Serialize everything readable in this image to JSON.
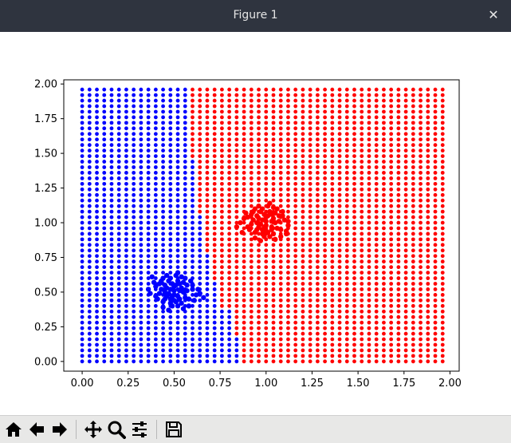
{
  "window": {
    "title": "Figure 1",
    "close_glyph": "✕"
  },
  "toolbar": {
    "buttons": [
      {
        "icon": "home-icon"
      },
      {
        "icon": "back-arrow-icon"
      },
      {
        "icon": "forward-arrow-icon"
      },
      {
        "icon": "pan-icon"
      },
      {
        "icon": "zoom-icon"
      },
      {
        "icon": "configure-subplots-icon"
      },
      {
        "icon": "save-icon"
      }
    ]
  },
  "colors": {
    "class0": "#0000ff",
    "class1": "#ff0000",
    "axes": "#000000"
  },
  "chart_data": {
    "type": "scatter",
    "title": "",
    "xlabel": "",
    "ylabel": "",
    "xlim": [
      -0.1,
      2.05
    ],
    "ylim": [
      -0.07,
      2.03
    ],
    "xticks": [
      "0.00",
      "0.25",
      "0.50",
      "0.75",
      "1.00",
      "1.25",
      "1.50",
      "1.75",
      "2.00"
    ],
    "yticks": [
      "0.00",
      "0.25",
      "0.50",
      "0.75",
      "1.00",
      "1.25",
      "1.50",
      "1.75",
      "2.00"
    ],
    "grid": false,
    "grid_points": {
      "x_range": [
        0.0,
        1.96
      ],
      "y_range": [
        0.0,
        1.96
      ],
      "step": 0.04,
      "boundary_note": "points classified blue (left) / red (right) by decision boundary",
      "boundary": [
        {
          "y": 2.0,
          "x": 0.58
        },
        {
          "y": 1.45,
          "x": 0.58
        },
        {
          "y": 1.44,
          "x": 0.62
        },
        {
          "y": 1.05,
          "x": 0.62
        },
        {
          "y": 1.04,
          "x": 0.66
        },
        {
          "y": 0.8,
          "x": 0.66
        },
        {
          "y": 0.79,
          "x": 0.7
        },
        {
          "y": 0.6,
          "x": 0.7
        },
        {
          "y": 0.59,
          "x": 0.74
        },
        {
          "y": 0.4,
          "x": 0.74
        },
        {
          "y": 0.39,
          "x": 0.82
        },
        {
          "y": 0.17,
          "x": 0.82
        },
        {
          "y": 0.16,
          "x": 0.86
        },
        {
          "y": 0.0,
          "x": 0.86
        }
      ]
    },
    "series": [
      {
        "color": "#0000ff",
        "center": [
          0.5,
          0.5
        ],
        "points": [
          [
            0.48,
            0.52
          ],
          [
            0.52,
            0.47
          ],
          [
            0.45,
            0.55
          ],
          [
            0.55,
            0.5
          ],
          [
            0.5,
            0.44
          ],
          [
            0.47,
            0.58
          ],
          [
            0.53,
            0.56
          ],
          [
            0.42,
            0.49
          ],
          [
            0.58,
            0.45
          ],
          [
            0.49,
            0.4
          ],
          [
            0.44,
            0.43
          ],
          [
            0.56,
            0.6
          ],
          [
            0.51,
            0.62
          ],
          [
            0.4,
            0.54
          ],
          [
            0.6,
            0.52
          ],
          [
            0.46,
            0.47
          ],
          [
            0.54,
            0.42
          ],
          [
            0.5,
            0.54
          ],
          [
            0.43,
            0.58
          ],
          [
            0.57,
            0.55
          ],
          [
            0.48,
            0.45
          ],
          [
            0.52,
            0.58
          ],
          [
            0.38,
            0.61
          ],
          [
            0.62,
            0.48
          ],
          [
            0.47,
            0.37
          ],
          [
            0.55,
            0.38
          ],
          [
            0.45,
            0.5
          ],
          [
            0.53,
            0.51
          ],
          [
            0.41,
            0.45
          ],
          [
            0.59,
            0.58
          ],
          [
            0.5,
            0.48
          ],
          [
            0.49,
            0.56
          ],
          [
            0.64,
            0.49
          ],
          [
            0.36,
            0.52
          ],
          [
            0.52,
            0.64
          ],
          [
            0.46,
            0.62
          ],
          [
            0.58,
            0.4
          ],
          [
            0.44,
            0.39
          ],
          [
            0.61,
            0.44
          ],
          [
            0.39,
            0.57
          ],
          [
            0.51,
            0.43
          ],
          [
            0.48,
            0.6
          ],
          [
            0.56,
            0.46
          ],
          [
            0.43,
            0.52
          ],
          [
            0.54,
            0.53
          ],
          [
            0.47,
            0.49
          ],
          [
            0.53,
            0.45
          ],
          [
            0.5,
            0.51
          ],
          [
            0.66,
            0.46
          ],
          [
            0.45,
            0.45
          ],
          [
            0.57,
            0.51
          ],
          [
            0.42,
            0.56
          ],
          [
            0.55,
            0.57
          ],
          [
            0.49,
            0.47
          ],
          [
            0.51,
            0.55
          ],
          [
            0.46,
            0.53
          ],
          [
            0.6,
            0.55
          ],
          [
            0.4,
            0.47
          ],
          [
            0.52,
            0.4
          ],
          [
            0.48,
            0.42
          ],
          [
            0.63,
            0.52
          ],
          [
            0.37,
            0.49
          ],
          [
            0.54,
            0.61
          ],
          [
            0.44,
            0.6
          ]
        ]
      },
      {
        "color": "#ff0000",
        "center": [
          1.0,
          1.0
        ],
        "points": [
          [
            0.98,
            1.02
          ],
          [
            1.03,
            0.97
          ],
          [
            0.95,
            1.05
          ],
          [
            1.05,
            1.0
          ],
          [
            1.0,
            0.94
          ],
          [
            0.97,
            1.08
          ],
          [
            1.03,
            1.06
          ],
          [
            0.92,
            0.99
          ],
          [
            1.08,
            0.95
          ],
          [
            0.99,
            0.9
          ],
          [
            0.94,
            0.93
          ],
          [
            1.06,
            1.1
          ],
          [
            1.01,
            1.12
          ],
          [
            0.9,
            1.04
          ],
          [
            1.1,
            1.02
          ],
          [
            0.96,
            0.97
          ],
          [
            1.04,
            0.92
          ],
          [
            1.0,
            1.04
          ],
          [
            0.93,
            1.08
          ],
          [
            1.07,
            1.05
          ],
          [
            0.98,
            0.95
          ],
          [
            1.02,
            1.08
          ],
          [
            0.88,
            1.03
          ],
          [
            1.12,
            0.98
          ],
          [
            0.97,
            0.87
          ],
          [
            1.05,
            0.88
          ],
          [
            0.95,
            1.0
          ],
          [
            1.03,
            1.01
          ],
          [
            0.91,
            0.95
          ],
          [
            1.09,
            1.08
          ],
          [
            1.0,
            0.98
          ],
          [
            0.99,
            1.06
          ],
          [
            1.11,
            0.92
          ],
          [
            0.86,
            1.0
          ],
          [
            1.02,
            1.14
          ],
          [
            0.96,
            1.12
          ],
          [
            1.08,
            0.9
          ],
          [
            0.94,
            0.89
          ],
          [
            1.11,
            0.94
          ],
          [
            0.89,
            1.07
          ],
          [
            1.01,
            0.93
          ],
          [
            0.98,
            1.1
          ],
          [
            1.06,
            0.96
          ],
          [
            0.93,
            1.02
          ],
          [
            1.04,
            1.03
          ],
          [
            0.97,
            0.99
          ],
          [
            1.03,
            0.95
          ],
          [
            1.0,
            1.01
          ],
          [
            0.84,
            0.97
          ],
          [
            0.95,
            0.95
          ],
          [
            1.07,
            1.01
          ],
          [
            0.92,
            1.06
          ],
          [
            1.05,
            1.07
          ],
          [
            0.99,
            0.97
          ],
          [
            1.01,
            1.05
          ],
          [
            0.96,
            1.03
          ],
          [
            1.09,
            1.05
          ],
          [
            0.9,
            0.97
          ],
          [
            1.02,
            0.9
          ],
          [
            0.98,
            0.92
          ],
          [
            1.12,
            1.01
          ],
          [
            0.87,
            0.93
          ],
          [
            1.04,
            1.11
          ],
          [
            0.94,
            1.1
          ]
        ]
      }
    ]
  }
}
